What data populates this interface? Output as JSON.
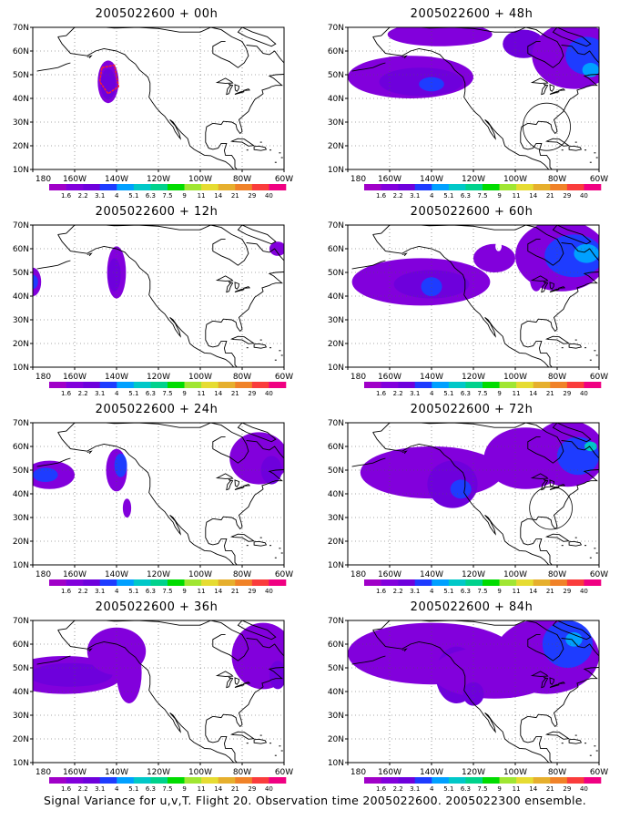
{
  "panels": [
    {
      "title": "2005022600 + 00h"
    },
    {
      "title": "2005022600 + 12h"
    },
    {
      "title": "2005022600 + 24h"
    },
    {
      "title": "2005022600 + 36h"
    },
    {
      "title": "2005022600 + 48h"
    },
    {
      "title": "2005022600 + 60h"
    },
    {
      "title": "2005022600 + 72h"
    },
    {
      "title": "2005022600 + 84h"
    }
  ],
  "axes": {
    "lat_labels": [
      "70N",
      "60N",
      "50N",
      "40N",
      "30N",
      "20N",
      "10N"
    ],
    "lon_labels": [
      "180",
      "160W",
      "140W",
      "120W",
      "100W",
      "80W",
      "60W"
    ]
  },
  "colorbar": {
    "labels": [
      "1.6",
      "2.2",
      "3.1",
      "4",
      "5.1",
      "6.3",
      "7.5",
      "9",
      "11",
      "14",
      "21",
      "29",
      "40"
    ],
    "colors": [
      "#a000c8",
      "#8200dc",
      "#6e00dc",
      "#1e3cff",
      "#00a0ff",
      "#00c8c8",
      "#00d28c",
      "#00dc00",
      "#a0e632",
      "#e6dc32",
      "#e6af2d",
      "#f08228",
      "#fa3c3c",
      "#f00082"
    ]
  },
  "footer": "Signal Variance for u,v,T. Flight 20. Observation time 2005022600. 2005022300 ensemble."
}
